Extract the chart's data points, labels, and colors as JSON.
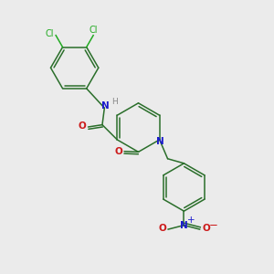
{
  "background_color": "#ebebeb",
  "bond_color": "#2a6e2a",
  "N_color": "#1a1acc",
  "O_color": "#cc1a1a",
  "Cl_color": "#22aa22",
  "H_color": "#888888",
  "figsize": [
    3.0,
    3.0
  ],
  "dpi": 100,
  "xlim": [
    0,
    10
  ],
  "ylim": [
    0,
    10
  ]
}
